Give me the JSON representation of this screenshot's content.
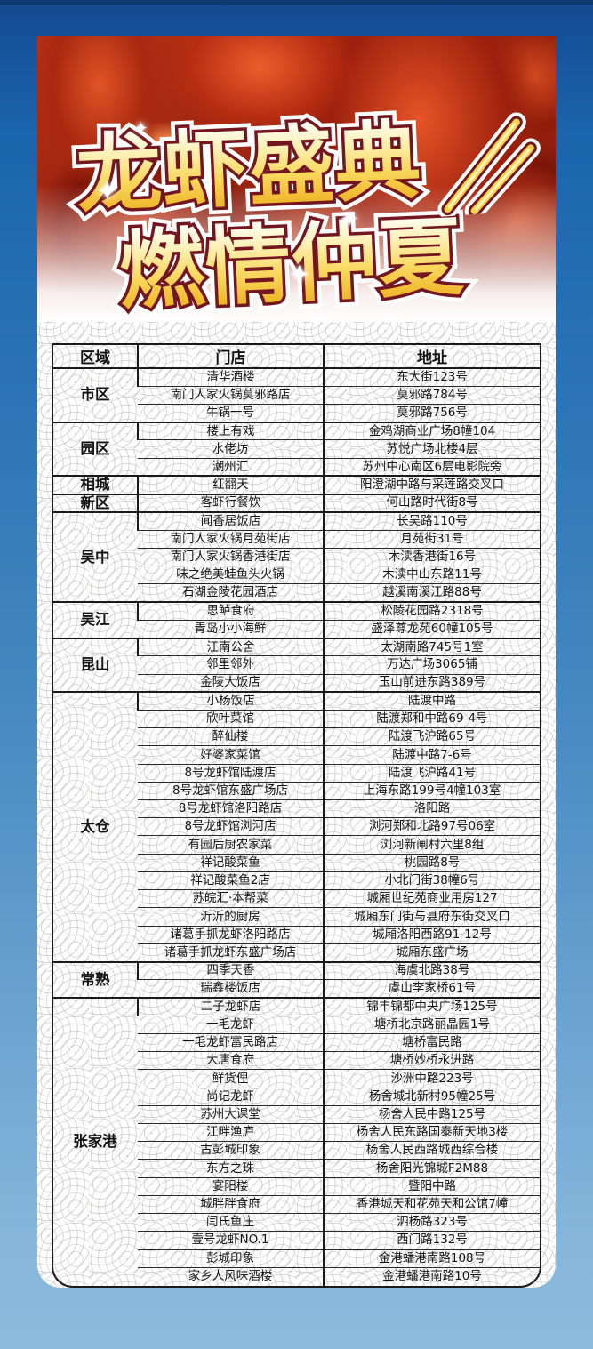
{
  "poster": {
    "title_line1": "龙虾盛典",
    "title_line2": "燃情仲夏",
    "sparkle_glyph": "✦"
  },
  "colors": {
    "background_top": "#134a90",
    "background_bottom": "#8cbadd",
    "top_stripe": "#0d3a70",
    "title_gold_light": "#fffdf2",
    "title_gold_dark": "#eab026",
    "title_outline": "#74161f",
    "title_outer_stroke": "#ffffff",
    "table_border": "#1a1a1a",
    "photo_red": "#b53013"
  },
  "table": {
    "headers": [
      "区域",
      "门店",
      "地址"
    ],
    "groups": [
      {
        "region": "市区",
        "rows": [
          [
            "清华酒楼",
            "东大街123号"
          ],
          [
            "南门人家火锅莫邪路店",
            "莫邪路784号"
          ],
          [
            "牛锅一号",
            "莫邪路756号"
          ]
        ]
      },
      {
        "region": "园区",
        "rows": [
          [
            "楼上有戏",
            "金鸡湖商业广场8幢104"
          ],
          [
            "水佬坊",
            "苏悦广场北楼4层"
          ],
          [
            "潮州汇",
            "苏州中心南区6层电影院旁"
          ]
        ]
      },
      {
        "region": "相城",
        "rows": [
          [
            "红翻天",
            "阳澄湖中路与采莲路交叉口"
          ]
        ]
      },
      {
        "region": "新区",
        "rows": [
          [
            "客虾行餐饮",
            "何山路时代街8号"
          ]
        ]
      },
      {
        "region": "吴中",
        "rows": [
          [
            "闻香居饭店",
            "长吴路110号"
          ],
          [
            "南门人家火锅月苑街店",
            "月苑街31号"
          ],
          [
            "南门人家火锅香港街店",
            "木渎香港街16号"
          ],
          [
            "味之绝美蛙鱼头火锅",
            "木渎中山东路11号"
          ],
          [
            "石湖金陵花园酒店",
            "越溪南溪江路88号"
          ]
        ]
      },
      {
        "region": "吴江",
        "rows": [
          [
            "思鲈食府",
            "松陵花园路2318号"
          ],
          [
            "青岛小小海鲜",
            "盛泽尊龙苑60幢105号"
          ]
        ]
      },
      {
        "region": "昆山",
        "rows": [
          [
            "江南公舍",
            "太湖南路745号1室"
          ],
          [
            "邻里邻外",
            "万达广场3065铺"
          ],
          [
            "金陵大饭店",
            "玉山前进东路389号"
          ]
        ]
      },
      {
        "region": "太仓",
        "rows": [
          [
            "小杨饭店",
            "陆渡中路"
          ],
          [
            "欣叶菜馆",
            "陆渡郑和中路69-4号"
          ],
          [
            "醉仙楼",
            "陆渡飞沪路65号"
          ],
          [
            "好婆家菜馆",
            "陆渡中路7-6号"
          ],
          [
            "8号龙虾馆陆渡店",
            "陆渡飞沪路41号"
          ],
          [
            "8号龙虾馆东盛广场店",
            "上海东路199号4幢103室"
          ],
          [
            "8号龙虾馆洛阳路店",
            "洛阳路"
          ],
          [
            "8号龙虾馆浏河店",
            "浏河郑和北路97号06室"
          ],
          [
            "有园后厨农家菜",
            "浏河新闸村六里8组"
          ],
          [
            "祥记酸菜鱼",
            "桃园路8号"
          ],
          [
            "祥记酸菜鱼2店",
            "小北门街38幢6号"
          ],
          [
            "苏皖汇·本帮菜",
            "城厢世纪苑商业用房127"
          ],
          [
            "沂沂的厨房",
            "城厢东门街与县府东街交叉口"
          ],
          [
            "诸葛手抓龙虾洛阳路店",
            "城厢洛阳西路91-12号"
          ],
          [
            "诸葛手抓龙虾东盛广场店",
            "城厢东盛广场"
          ]
        ]
      },
      {
        "region": "常熟",
        "rows": [
          [
            "四季天香",
            "海虞北路38号"
          ],
          [
            "瑞鑫楼饭店",
            "虞山李家桥61号"
          ]
        ]
      },
      {
        "region": "张家港",
        "rows": [
          [
            "二子龙虾店",
            "锦丰锦都中央广场125号"
          ],
          [
            "一毛龙虾",
            "塘桥北京路丽晶园1号"
          ],
          [
            "一毛龙虾富民路店",
            "塘桥富民路"
          ],
          [
            "大唐食府",
            "塘桥妙桥永进路"
          ],
          [
            "鲜货俚",
            "沙洲中路223号"
          ],
          [
            "尚记龙虾",
            "杨舍城北新村95幢25号"
          ],
          [
            "苏州大课堂",
            "杨舍人民中路125号"
          ],
          [
            "江畔渔庐",
            "杨舍人民东路国泰新天地3楼"
          ],
          [
            "古彭城印象",
            "杨舍人民西路城西综合楼"
          ],
          [
            "东方之珠",
            "杨舍阳光锦城F2M88"
          ],
          [
            "宴阳楼",
            "暨阳中路"
          ],
          [
            "城胖胖食府",
            "香港城天和花苑天和公馆7幢"
          ],
          [
            "闫氏鱼庄",
            "泗杨路323号"
          ],
          [
            "壹号龙虾NO.1",
            "西门路132号"
          ],
          [
            "彭城印象",
            "金港蟠港南路108号"
          ],
          [
            "家乡人风味酒楼",
            "金港蟠港南路10号"
          ]
        ]
      }
    ]
  }
}
